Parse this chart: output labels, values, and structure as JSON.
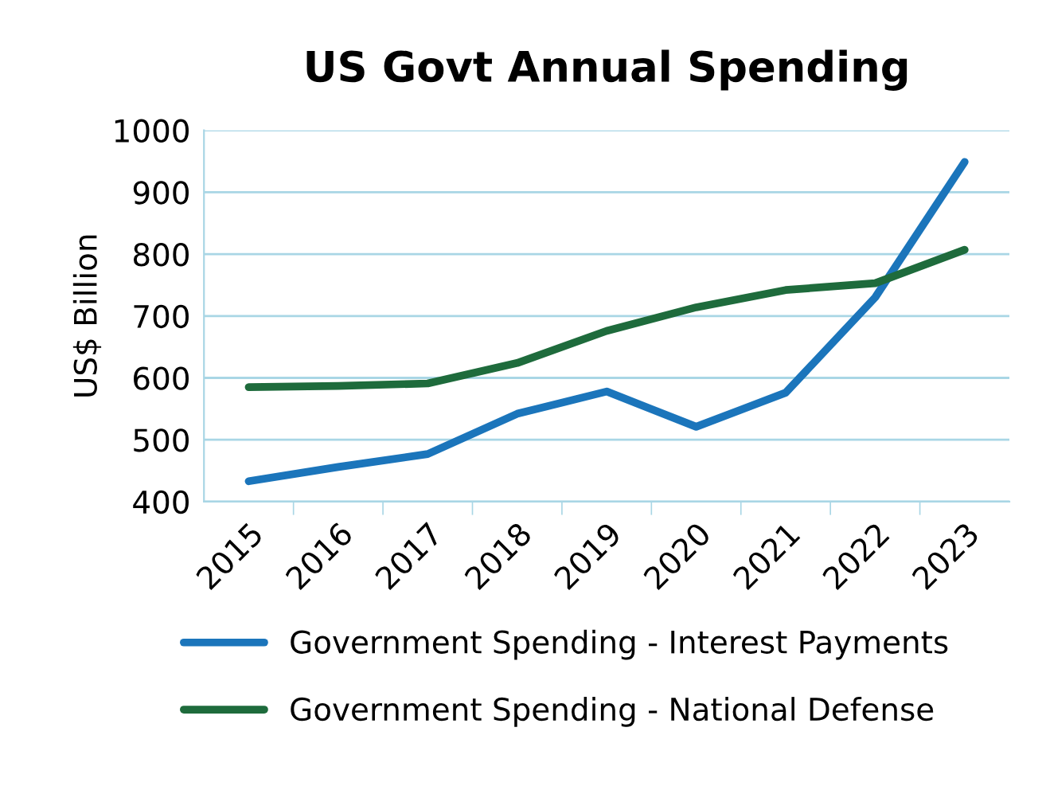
{
  "chart_data": {
    "type": "line",
    "title": "US Govt Annual Spending",
    "ylabel": "US$ Billion",
    "categories": [
      "2015",
      "2016",
      "2017",
      "2018",
      "2019",
      "2020",
      "2021",
      "2022",
      "2023"
    ],
    "series": [
      {
        "name": "Government Spending - Interest Payments",
        "color": "#1b75bb",
        "values": [
          433,
          456,
          477,
          542,
          578,
          521,
          576,
          730,
          949
        ]
      },
      {
        "name": "Government Spending - National Defense",
        "color": "#1e6b3c",
        "values": [
          585,
          587,
          591,
          624,
          676,
          714,
          742,
          753,
          807
        ]
      }
    ],
    "ylim": [
      400,
      1000
    ],
    "yticks": [
      400,
      500,
      600,
      700,
      800,
      900,
      1000
    ],
    "grid": "y",
    "legend": "bottom",
    "marker": "none",
    "line_style": "solid"
  }
}
